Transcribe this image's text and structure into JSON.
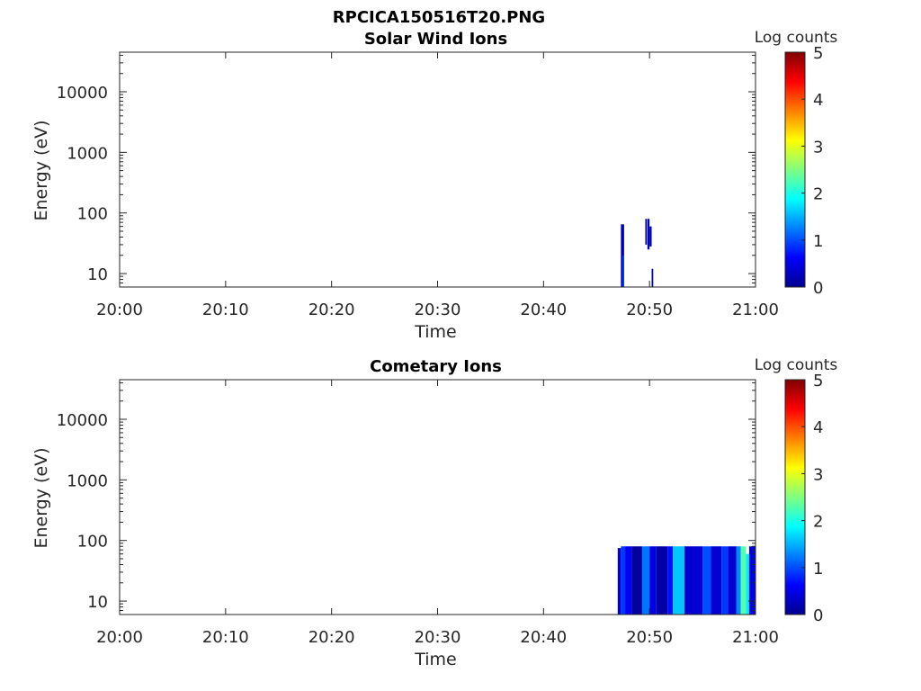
{
  "figure_title": "RPCICA150516T20.PNG",
  "chart_data": [
    {
      "type": "heatmap",
      "title": "Solar Wind Ions",
      "xlabel": "Time",
      "ylabel": "Energy (eV)",
      "x_ticks": [
        "20:00",
        "20:10",
        "20:20",
        "20:30",
        "20:40",
        "20:50",
        "21:00"
      ],
      "x_range_minutes": [
        0,
        60
      ],
      "y_ticks": [
        "10",
        "100",
        "1000",
        "10000"
      ],
      "y_range": [
        6,
        45000
      ],
      "y_scale": "log",
      "colorbar": {
        "label": "Log counts",
        "ticks": [
          "0",
          "1",
          "2",
          "3",
          "4",
          "5"
        ],
        "range": [
          0,
          5
        ],
        "colormap": "jet"
      },
      "regions": [
        {
          "t0": 47.3,
          "t1": 47.6,
          "e0": 6,
          "e1": 65,
          "level": 0.25
        },
        {
          "t0": 47.45,
          "t1": 47.6,
          "e0": 6,
          "e1": 20,
          "level": 0.9
        },
        {
          "t0": 49.6,
          "t1": 49.75,
          "e0": 30,
          "e1": 80,
          "level": 0.2
        },
        {
          "t0": 49.8,
          "t1": 50.0,
          "e0": 25,
          "e1": 80,
          "level": 0.3
        },
        {
          "t0": 50.0,
          "t1": 50.2,
          "e0": 28,
          "e1": 60,
          "level": 0.2
        },
        {
          "t0": 50.2,
          "t1": 50.35,
          "e0": 6,
          "e1": 12,
          "level": 0.2
        }
      ]
    },
    {
      "type": "heatmap",
      "title": "Cometary Ions",
      "xlabel": "Time",
      "ylabel": "Energy (eV)",
      "x_ticks": [
        "20:00",
        "20:10",
        "20:20",
        "20:30",
        "20:40",
        "20:50",
        "21:00"
      ],
      "x_range_minutes": [
        0,
        60
      ],
      "y_ticks": [
        "10",
        "100",
        "1000",
        "10000"
      ],
      "y_range": [
        6,
        45000
      ],
      "y_scale": "log",
      "colorbar": {
        "label": "Log counts",
        "ticks": [
          "0",
          "1",
          "2",
          "3",
          "4",
          "5"
        ],
        "range": [
          0,
          5
        ],
        "colormap": "jet"
      },
      "regions": [
        {
          "t0": 47.0,
          "t1": 47.3,
          "e0": 6,
          "e1": 75,
          "level": 0.4
        },
        {
          "t0": 47.3,
          "t1": 47.7,
          "e0": 6,
          "e1": 80,
          "level": 0.9
        },
        {
          "t0": 47.7,
          "t1": 48.3,
          "e0": 6,
          "e1": 80,
          "level": 0.6
        },
        {
          "t0": 48.3,
          "t1": 49.3,
          "e0": 6,
          "e1": 80,
          "level": 0.15
        },
        {
          "t0": 49.3,
          "t1": 50.0,
          "e0": 6,
          "e1": 80,
          "level": 1.2
        },
        {
          "t0": 50.0,
          "t1": 50.6,
          "e0": 6,
          "e1": 80,
          "level": 0.5
        },
        {
          "t0": 50.6,
          "t1": 51.7,
          "e0": 6,
          "e1": 80,
          "level": 0.2
        },
        {
          "t0": 51.7,
          "t1": 52.2,
          "e0": 6,
          "e1": 80,
          "level": 0.7
        },
        {
          "t0": 52.2,
          "t1": 53.3,
          "e0": 6,
          "e1": 80,
          "level": 1.6
        },
        {
          "t0": 53.3,
          "t1": 55.0,
          "e0": 6,
          "e1": 80,
          "level": 0.4
        },
        {
          "t0": 55.0,
          "t1": 55.8,
          "e0": 6,
          "e1": 80,
          "level": 1.0
        },
        {
          "t0": 55.8,
          "t1": 56.8,
          "e0": 6,
          "e1": 80,
          "level": 0.4
        },
        {
          "t0": 56.8,
          "t1": 57.4,
          "e0": 6,
          "e1": 80,
          "level": 0.9
        },
        {
          "t0": 57.4,
          "t1": 58.2,
          "e0": 6,
          "e1": 80,
          "level": 0.4
        },
        {
          "t0": 58.2,
          "t1": 58.6,
          "e0": 6,
          "e1": 80,
          "level": 1.3
        },
        {
          "t0": 58.6,
          "t1": 59.1,
          "e0": 6,
          "e1": 80,
          "level": 2.3
        },
        {
          "t0": 59.1,
          "t1": 59.4,
          "e0": 6,
          "e1": 60,
          "level": 1.8
        },
        {
          "t0": 59.4,
          "t1": 60.0,
          "e0": 6,
          "e1": 80,
          "level": 0.5
        }
      ]
    }
  ]
}
